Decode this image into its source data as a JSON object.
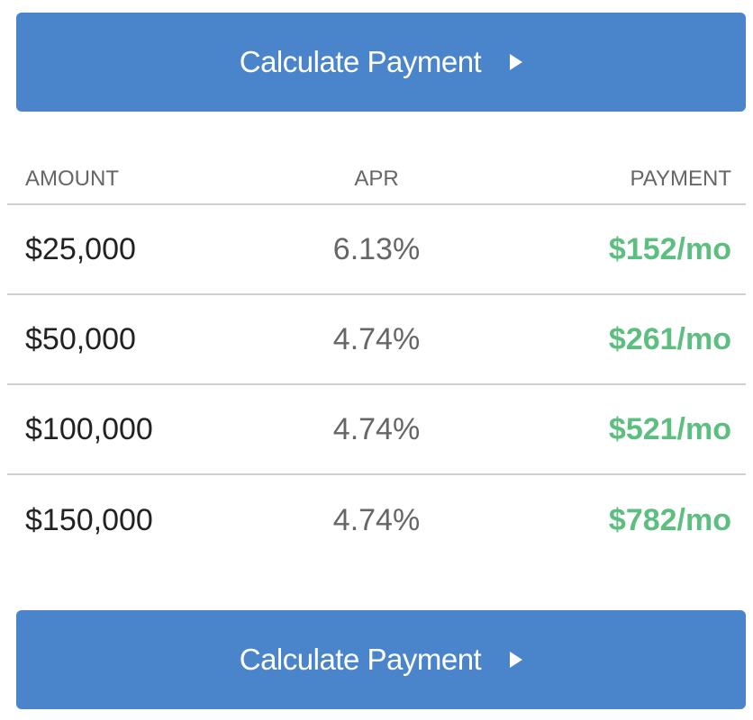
{
  "buttons": {
    "calculate_label": "Calculate Payment",
    "icon": "play-triangle-icon",
    "color": "#4a85cc"
  },
  "table": {
    "headers": [
      "AMOUNT",
      "APR",
      "PAYMENT"
    ],
    "rows": [
      {
        "amount": "$25,000",
        "apr": "6.13%",
        "payment": "$152/mo"
      },
      {
        "amount": "$50,000",
        "apr": "4.74%",
        "payment": "$261/mo"
      },
      {
        "amount": "$100,000",
        "apr": "4.74%",
        "payment": "$521/mo"
      },
      {
        "amount": "$150,000",
        "apr": "4.74%",
        "payment": "$782/mo"
      }
    ],
    "payment_color": "#5cbf7f"
  }
}
